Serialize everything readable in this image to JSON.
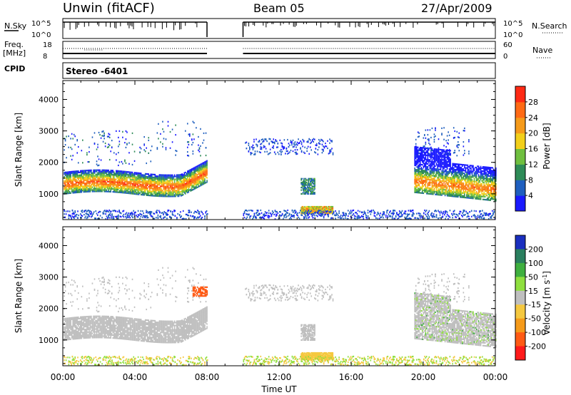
{
  "header": {
    "title": "Unwin (fitACF)",
    "beam": "Beam 05",
    "date": "27/Apr/2009"
  },
  "strip_nsky": {
    "left_label": "N.Sky",
    "left_ticks": [
      "10^5",
      "10^0"
    ],
    "right_ticks": [
      "10^5",
      "10^0"
    ],
    "right_label": "N.Search"
  },
  "strip_freq": {
    "left_label_1": "Freq.",
    "left_label_2": "[MHz]",
    "left_ticks": [
      "18",
      "8"
    ],
    "right_ticks": [
      "60",
      "0"
    ],
    "right_label": "Nave"
  },
  "cpid": {
    "label": "CPID",
    "value": "Stereo -6401"
  },
  "chart_data": [
    {
      "type": "heatmap",
      "title": "",
      "xlabel": "Time UT",
      "ylabel": "Slant Range [km]",
      "xticks": [
        "00:00",
        "04:00",
        "08:00",
        "12:00",
        "16:00",
        "20:00",
        "00:00"
      ],
      "yticks": [
        "1000",
        "2000",
        "3000",
        "4000"
      ],
      "ylim": [
        180,
        4600
      ],
      "colorbar": {
        "label": "Power [dB]",
        "ticks": [
          "4",
          "8",
          "12",
          "16",
          "20",
          "24",
          "28"
        ],
        "colors": [
          "#1a1aff",
          "#1f5fbf",
          "#2e8b57",
          "#6fbf3f",
          "#f2cf1a",
          "#f59a1a",
          "#ff6a14",
          "#ff2a14"
        ]
      },
      "data_gap_hours": [
        8.0,
        10.0
      ],
      "regions": [
        {
          "name": "band A 00-08 UT",
          "t": [
            0,
            8
          ],
          "range": [
            1000,
            1800
          ],
          "peak_db": 28
        },
        {
          "name": "upper patches 00-08 UT",
          "t": [
            0,
            8
          ],
          "range": [
            1800,
            3300
          ],
          "peak_db": 10
        },
        {
          "name": "upper patches 10-15 UT",
          "t": [
            10,
            15
          ],
          "range": [
            2200,
            2800
          ],
          "peak_db": 6
        },
        {
          "name": "blob 13-14 UT",
          "t": [
            13.2,
            14.0
          ],
          "range": [
            1000,
            1500
          ],
          "peak_db": 12
        },
        {
          "name": "ground scatter 13-15 UT",
          "t": [
            13.2,
            15.0
          ],
          "range": [
            400,
            600
          ],
          "peak_db": 24
        },
        {
          "name": "band B 19-24 UT",
          "t": [
            19.5,
            24
          ],
          "range": [
            900,
            2800
          ],
          "peak_db": 26
        }
      ]
    },
    {
      "type": "heatmap",
      "title": "",
      "xlabel": "Time UT",
      "ylabel": "Slant Range [km]",
      "xticks": [
        "00:00",
        "04:00",
        "08:00",
        "12:00",
        "16:00",
        "20:00",
        "00:00"
      ],
      "yticks": [
        "1000",
        "2000",
        "3000",
        "4000"
      ],
      "ylim": [
        180,
        4600
      ],
      "colorbar": {
        "label": "Velocity [m s^-1]",
        "ticks": [
          "200",
          "100",
          "50",
          "15",
          "-15",
          "-50",
          "-100",
          "-200"
        ],
        "colors": [
          "#1a2fbf",
          "#2a7f5f",
          "#3faf3f",
          "#8fdf3f",
          "#bfbfbf",
          "#f5c83f",
          "#f59a1a",
          "#ff5a14",
          "#ff1a1a"
        ]
      },
      "data_gap_hours": [
        8.0,
        10.0
      ],
      "regions": [
        {
          "name": "band A 00-08 UT",
          "t": [
            0,
            8
          ],
          "range": [
            1000,
            1800
          ],
          "velocity": 0
        },
        {
          "name": "upper patch 07-08 UT",
          "t": [
            7.2,
            8
          ],
          "range": [
            2400,
            2700
          ],
          "velocity": -150
        },
        {
          "name": "ground scatter 13-15 UT",
          "t": [
            13.2,
            15.0
          ],
          "range": [
            400,
            600
          ],
          "velocity": -50
        },
        {
          "name": "band B 19-24 UT",
          "t": [
            19.5,
            24
          ],
          "range": [
            900,
            2800
          ],
          "velocity": 0
        }
      ]
    }
  ]
}
